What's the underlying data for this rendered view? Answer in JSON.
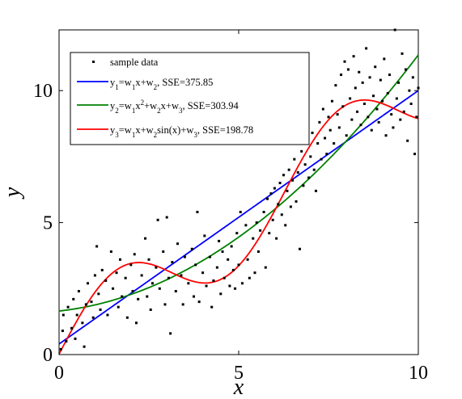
{
  "chart_data": {
    "type": "scatter",
    "xlabel": "x",
    "ylabel": "y",
    "xlim": [
      0,
      10
    ],
    "ylim": [
      0,
      12.3
    ],
    "x_ticks": [
      0,
      5,
      10
    ],
    "y_ticks": [
      0,
      5,
      10
    ],
    "grid": false,
    "legend_placement": "top-left",
    "series": [
      {
        "name": "sample data",
        "kind": "markers",
        "color": "#000000",
        "points": [
          [
            0.05,
            0.2
          ],
          [
            0.1,
            0.9
          ],
          [
            0.12,
            1.5
          ],
          [
            0.2,
            0.5
          ],
          [
            0.25,
            1.8
          ],
          [
            0.35,
            1.0
          ],
          [
            0.4,
            2.1
          ],
          [
            0.45,
            0.6
          ],
          [
            0.5,
            1.5
          ],
          [
            0.55,
            2.4
          ],
          [
            0.65,
            1.2
          ],
          [
            0.7,
            0.3
          ],
          [
            0.75,
            1.9
          ],
          [
            0.8,
            2.7
          ],
          [
            0.9,
            2.0
          ],
          [
            0.95,
            1.4
          ],
          [
            1.0,
            3.0
          ],
          [
            1.05,
            4.1
          ],
          [
            1.1,
            2.3
          ],
          [
            1.15,
            1.7
          ],
          [
            1.2,
            3.2
          ],
          [
            1.3,
            2.8
          ],
          [
            1.35,
            1.5
          ],
          [
            1.45,
            3.9
          ],
          [
            1.5,
            2.5
          ],
          [
            1.6,
            3.1
          ],
          [
            1.65,
            1.8
          ],
          [
            1.7,
            3.6
          ],
          [
            1.75,
            2.2
          ],
          [
            1.85,
            2.9
          ],
          [
            1.9,
            1.4
          ],
          [
            2.0,
            3.4
          ],
          [
            2.05,
            2.4
          ],
          [
            2.1,
            3.8
          ],
          [
            2.15,
            1.2
          ],
          [
            2.2,
            2.1
          ],
          [
            2.3,
            3.0
          ],
          [
            2.4,
            4.4
          ],
          [
            2.45,
            2.2
          ],
          [
            2.5,
            3.6
          ],
          [
            2.55,
            1.7
          ],
          [
            2.6,
            2.7
          ],
          [
            2.7,
            3.3
          ],
          [
            2.75,
            5.1
          ],
          [
            2.8,
            2.5
          ],
          [
            2.9,
            3.9
          ],
          [
            2.95,
            1.9
          ],
          [
            3.0,
            5.2
          ],
          [
            3.05,
            2.9
          ],
          [
            3.1,
            0.8
          ],
          [
            3.15,
            3.5
          ],
          [
            3.25,
            2.4
          ],
          [
            3.3,
            4.2
          ],
          [
            3.4,
            3.0
          ],
          [
            3.45,
            1.9
          ],
          [
            3.5,
            3.7
          ],
          [
            3.6,
            2.7
          ],
          [
            3.7,
            4.0
          ],
          [
            3.75,
            2.2
          ],
          [
            3.8,
            3.4
          ],
          [
            3.85,
            5.4
          ],
          [
            3.9,
            2.0
          ],
          [
            4.0,
            3.1
          ],
          [
            4.05,
            4.5
          ],
          [
            4.1,
            2.6
          ],
          [
            4.2,
            3.7
          ],
          [
            4.25,
            1.8
          ],
          [
            4.3,
            2.8
          ],
          [
            4.4,
            3.3
          ],
          [
            4.45,
            4.3
          ],
          [
            4.5,
            2.3
          ],
          [
            4.55,
            3.9
          ],
          [
            4.6,
            2.9
          ],
          [
            4.7,
            3.6
          ],
          [
            4.75,
            2.6
          ],
          [
            4.8,
            4.1
          ],
          [
            4.85,
            3.2
          ],
          [
            4.9,
            2.5
          ],
          [
            4.95,
            4.6
          ],
          [
            5.0,
            3.4
          ],
          [
            5.05,
            5.4
          ],
          [
            5.1,
            2.7
          ],
          [
            5.2,
            4.9
          ],
          [
            5.25,
            3.6
          ],
          [
            5.3,
            2.9
          ],
          [
            5.4,
            4.4
          ],
          [
            5.45,
            3.1
          ],
          [
            5.5,
            5.0
          ],
          [
            5.55,
            3.9
          ],
          [
            5.6,
            4.7
          ],
          [
            5.7,
            5.4
          ],
          [
            5.75,
            3.3
          ],
          [
            5.8,
            5.9
          ],
          [
            5.85,
            4.6
          ],
          [
            5.9,
            6.1
          ],
          [
            5.95,
            5.1
          ],
          [
            6.0,
            6.3
          ],
          [
            6.05,
            4.4
          ],
          [
            6.1,
            5.7
          ],
          [
            6.15,
            6.5
          ],
          [
            6.2,
            5.3
          ],
          [
            6.25,
            6.8
          ],
          [
            6.3,
            4.9
          ],
          [
            6.35,
            6.2
          ],
          [
            6.4,
            7.0
          ],
          [
            6.45,
            5.6
          ],
          [
            6.5,
            6.6
          ],
          [
            6.55,
            7.4
          ],
          [
            6.6,
            5.8
          ],
          [
            6.65,
            6.9
          ],
          [
            6.7,
            4.0
          ],
          [
            6.75,
            7.7
          ],
          [
            6.8,
            6.4
          ],
          [
            6.85,
            7.2
          ],
          [
            6.9,
            8.1
          ],
          [
            6.95,
            6.7
          ],
          [
            7.0,
            7.5
          ],
          [
            7.05,
            8.4
          ],
          [
            7.1,
            7.0
          ],
          [
            7.15,
            6.2
          ],
          [
            7.2,
            8.0
          ],
          [
            7.25,
            8.8
          ],
          [
            7.3,
            7.4
          ],
          [
            7.35,
            9.3
          ],
          [
            7.4,
            8.2
          ],
          [
            7.45,
            7.6
          ],
          [
            7.5,
            9.0
          ],
          [
            7.55,
            8.5
          ],
          [
            7.6,
            9.6
          ],
          [
            7.65,
            8.0
          ],
          [
            7.7,
            10.2
          ],
          [
            7.75,
            9.1
          ],
          [
            7.8,
            8.6
          ],
          [
            7.85,
            10.6
          ],
          [
            7.9,
            9.4
          ],
          [
            7.95,
            11.1
          ],
          [
            8.0,
            8.3
          ],
          [
            8.05,
            10.8
          ],
          [
            8.1,
            9.7
          ],
          [
            8.15,
            8.9
          ],
          [
            8.2,
            11.3
          ],
          [
            8.25,
            10.1
          ],
          [
            8.3,
            9.2
          ],
          [
            8.35,
            10.7
          ],
          [
            8.4,
            8.7
          ],
          [
            8.45,
            10.3
          ],
          [
            8.5,
            9.5
          ],
          [
            8.55,
            11.6
          ],
          [
            8.6,
            9.0
          ],
          [
            8.65,
            10.5
          ],
          [
            8.7,
            8.5
          ],
          [
            8.75,
            9.8
          ],
          [
            8.8,
            10.9
          ],
          [
            8.85,
            9.3
          ],
          [
            8.9,
            8.8
          ],
          [
            8.95,
            10.4
          ],
          [
            9.0,
            9.6
          ],
          [
            9.05,
            11.2
          ],
          [
            9.1,
            8.3
          ],
          [
            9.15,
            9.9
          ],
          [
            9.2,
            10.6
          ],
          [
            9.25,
            9.1
          ],
          [
            9.3,
            8.6
          ],
          [
            9.35,
            12.3
          ],
          [
            9.4,
            9.7
          ],
          [
            9.45,
            10.3
          ],
          [
            9.5,
            8.9
          ],
          [
            9.55,
            11.4
          ],
          [
            9.6,
            9.2
          ],
          [
            9.65,
            10.8
          ],
          [
            9.7,
            8.1
          ],
          [
            9.75,
            10.0
          ],
          [
            9.8,
            9.5
          ],
          [
            9.85,
            10.5
          ],
          [
            9.9,
            7.6
          ],
          [
            9.95,
            9.0
          ],
          [
            10.0,
            10.1
          ]
        ]
      },
      {
        "name": "y1=w1x+w2, SSE=375.85",
        "label_parts": {
          "a": "y",
          "a_sub": "1",
          "b": "=w",
          "b_sub": "1",
          "c": "x+w",
          "c_sub": "2",
          "d": ", SSE=375.85"
        },
        "kind": "line",
        "color": "#0000ff",
        "model": "linear",
        "coefficients": {
          "w1": 0.96,
          "w2": 0.4
        }
      },
      {
        "name": "y2=w1x2+w2x+w3, SSE=303.94",
        "label_parts": {
          "a": "y",
          "a_sub": "2",
          "b": "=w",
          "b_sub": "1",
          "c": "x",
          "c_sup": "2",
          "d": "+w",
          "d_sub": "2",
          "e": "x+w",
          "e_sub": "3",
          "f": ", SSE=303.94"
        },
        "kind": "line",
        "color": "#008000",
        "model": "quadratic",
        "coefficients": {
          "w1": 0.082,
          "w2": 0.15,
          "w3": 1.65
        }
      },
      {
        "name": "y3=w1x+w2sin(x)+w3, SSE=198.78",
        "label_parts": {
          "a": "y",
          "a_sub": "3",
          "b": "=w",
          "b_sub": "1",
          "c": "x+w",
          "c_sub": "2",
          "d": "sin(x)+w",
          "d_sub": "3",
          "e": ", SSE=198.78"
        },
        "kind": "line",
        "color": "#ff0000",
        "model": "linear_plus_sine",
        "coefficients": {
          "w1": 0.98,
          "w2": 1.62,
          "w3": 0.02
        }
      }
    ]
  }
}
